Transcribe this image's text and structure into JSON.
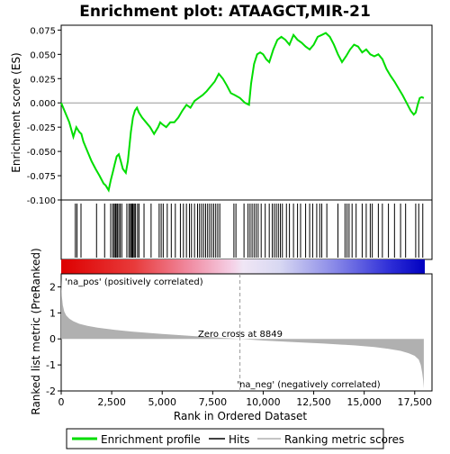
{
  "chart_data": {
    "type": "line",
    "title": "Enrichment plot: ATAAGCT,MIR-21",
    "xlabel": "Rank in Ordered Dataset",
    "upper_panel": {
      "ylabel": "Enrichment score (ES)",
      "ylim": [
        -0.1,
        0.08
      ],
      "yticks": [
        "0.075",
        "0.050",
        "0.025",
        "0.000",
        "-0.025",
        "-0.050",
        "-0.075",
        "-0.100"
      ],
      "ytick_values": [
        0.075,
        0.05,
        0.025,
        0.0,
        -0.025,
        -0.05,
        -0.075,
        -0.1
      ],
      "zero_line": true,
      "series": {
        "name": "Enrichment profile",
        "color": "#00dd00",
        "x": [
          0,
          400,
          600,
          750,
          900,
          1000,
          1100,
          1300,
          1500,
          1700,
          1900,
          2100,
          2200,
          2350,
          2450,
          2550,
          2650,
          2750,
          2850,
          2950,
          3050,
          3200,
          3300,
          3450,
          3550,
          3650,
          3750,
          3850,
          4000,
          4200,
          4400,
          4600,
          4800,
          4900,
          5000,
          5200,
          5400,
          5600,
          5800,
          6000,
          6200,
          6400,
          6600,
          6800,
          7000,
          7200,
          7400,
          7600,
          7800,
          8000,
          8200,
          8400,
          8600,
          8849,
          9100,
          9300,
          9400,
          9550,
          9700,
          9850,
          10000,
          10150,
          10300,
          10500,
          10700,
          10900,
          11100,
          11300,
          11500,
          11700,
          11900,
          12100,
          12300,
          12500,
          12700,
          12900,
          13100,
          13300,
          13500,
          13700,
          13900,
          14100,
          14300,
          14500,
          14700,
          14900,
          15100,
          15300,
          15500,
          15700,
          15900,
          16100,
          16300,
          16500,
          16700,
          16900,
          17100,
          17300,
          17450,
          17550,
          17650,
          17750,
          17850,
          17950
        ],
        "y": [
          0.0,
          -0.02,
          -0.035,
          -0.025,
          -0.03,
          -0.032,
          -0.04,
          -0.05,
          -0.06,
          -0.068,
          -0.075,
          -0.083,
          -0.085,
          -0.09,
          -0.08,
          -0.072,
          -0.063,
          -0.055,
          -0.053,
          -0.06,
          -0.068,
          -0.072,
          -0.06,
          -0.03,
          -0.015,
          -0.008,
          -0.005,
          -0.01,
          -0.015,
          -0.02,
          -0.025,
          -0.032,
          -0.025,
          -0.02,
          -0.022,
          -0.025,
          -0.02,
          -0.02,
          -0.015,
          -0.008,
          -0.002,
          -0.005,
          0.002,
          0.005,
          0.008,
          0.012,
          0.017,
          0.022,
          0.03,
          0.025,
          0.018,
          0.01,
          0.008,
          0.005,
          0.0,
          -0.002,
          0.02,
          0.04,
          0.05,
          0.052,
          0.05,
          0.045,
          0.042,
          0.055,
          0.065,
          0.068,
          0.065,
          0.06,
          0.07,
          0.065,
          0.062,
          0.058,
          0.055,
          0.06,
          0.068,
          0.07,
          0.072,
          0.068,
          0.06,
          0.05,
          0.042,
          0.048,
          0.055,
          0.06,
          0.058,
          0.052,
          0.055,
          0.05,
          0.048,
          0.05,
          0.045,
          0.035,
          0.028,
          0.022,
          0.015,
          0.008,
          0.0,
          -0.008,
          -0.012,
          -0.01,
          -0.002,
          0.005,
          0.006,
          0.005
        ]
      }
    },
    "hits": [
      700,
      780,
      980,
      1750,
      2150,
      2450,
      2550,
      2620,
      2680,
      2720,
      2780,
      2850,
      2920,
      3000,
      3250,
      3350,
      3420,
      3480,
      3520,
      3560,
      3620,
      3680,
      3780,
      3850,
      4100,
      4450,
      4850,
      4950,
      5050,
      5250,
      5450,
      5650,
      5900,
      6050,
      6200,
      6350,
      6450,
      6600,
      6750,
      6850,
      6950,
      7050,
      7150,
      7250,
      7350,
      7450,
      7550,
      7650,
      7750,
      7850,
      8550,
      8650,
      9050,
      9250,
      9350,
      9450,
      9550,
      9650,
      9750,
      9900,
      10100,
      10300,
      10450,
      10550,
      10650,
      10750,
      10850,
      10950,
      11150,
      11300,
      11500,
      11700,
      11850,
      12100,
      12300,
      12450,
      12650,
      12800,
      12900,
      13150,
      13700,
      14050,
      14150,
      14250,
      14400,
      14600,
      14900,
      15100,
      15300,
      15400,
      15700,
      15900,
      16200,
      16500,
      16800,
      17050,
      17550,
      17700,
      17900
    ],
    "ranking_panel": {
      "ylabel": "Ranked list metric (PreRanked)",
      "ylim": [
        -2,
        2.5
      ],
      "yticks": [
        "2",
        "1",
        "0",
        "-1",
        "-2"
      ],
      "ytick_values": [
        2,
        1,
        0,
        -1,
        -2
      ],
      "color": "#b0b0b0",
      "x": [
        0,
        30,
        80,
        150,
        250,
        400,
        600,
        900,
        1300,
        1800,
        2500,
        3500,
        5000,
        6500,
        8000,
        8849,
        10000,
        11500,
        13000,
        14500,
        15500,
        16200,
        16800,
        17200,
        17500,
        17700,
        17800,
        17870,
        17920,
        17950
      ],
      "y": [
        2.3,
        1.65,
        1.3,
        1.05,
        0.9,
        0.78,
        0.68,
        0.58,
        0.5,
        0.43,
        0.36,
        0.28,
        0.19,
        0.11,
        0.04,
        0.0,
        -0.06,
        -0.12,
        -0.18,
        -0.25,
        -0.31,
        -0.38,
        -0.46,
        -0.55,
        -0.65,
        -0.8,
        -1.0,
        -1.3,
        -1.6,
        -1.9
      ]
    },
    "x_axis": {
      "xlim": [
        0,
        18000
      ],
      "ticks": [
        "0",
        "2,500",
        "5,000",
        "7,500",
        "10,000",
        "12,500",
        "15,000",
        "17,500"
      ],
      "tick_values": [
        0,
        2500,
        5000,
        7500,
        10000,
        12500,
        15000,
        17500
      ]
    },
    "zero_cross": 8849,
    "annotations": {
      "pos_label": "'na_pos' (positively correlated)",
      "neg_label": "'na_neg' (negatively correlated)",
      "zero_cross_label": "Zero cross at 8849",
      "pos_color": "#cc0000",
      "neg_color": "#0000cc"
    },
    "legend": {
      "placement": "bottom",
      "items": [
        {
          "label": "Enrichment profile",
          "color": "#00dd00"
        },
        {
          "label": "Hits",
          "color": "#000000"
        },
        {
          "label": "Ranking metric scores",
          "color": "#b0b0b0"
        }
      ]
    }
  }
}
